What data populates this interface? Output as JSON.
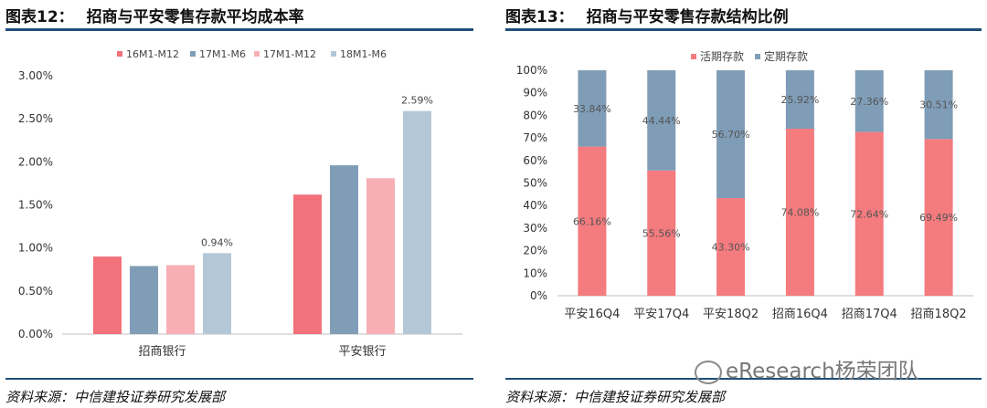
{
  "left": {
    "heading_num": "图表12：",
    "heading_title": "招商与平安零售存款平均成本率",
    "source": "资料来源：中信建投证券研究发展部"
  },
  "right": {
    "heading_num": "图表13：",
    "heading_title": "招商与平安零售存款结构比例",
    "source": "资料来源：中信建投证券研究发展部"
  },
  "watermark": "eResearch杨荣团队",
  "chart_data": [
    {
      "type": "bar",
      "title": "",
      "categories": [
        "招商银行",
        "平安银行"
      ],
      "series": [
        {
          "name": "16M1-M12",
          "color": "#f2717a",
          "values": [
            0.9,
            1.62
          ]
        },
        {
          "name": "17M1-M6",
          "color": "#7f9db7",
          "values": [
            0.79,
            1.96
          ]
        },
        {
          "name": "17M1-M12",
          "color": "#f7afb5",
          "values": [
            0.8,
            1.81
          ]
        },
        {
          "name": "18M1-M6",
          "color": "#b4c7d6",
          "values": [
            0.94,
            2.59
          ]
        }
      ],
      "data_labels": [
        {
          "series": 3,
          "category": 0,
          "text": "0.94%"
        },
        {
          "series": 3,
          "category": 1,
          "text": "2.59%"
        }
      ],
      "yticks": [
        "0.00%",
        "0.50%",
        "1.00%",
        "1.50%",
        "2.00%",
        "2.50%",
        "3.00%"
      ],
      "ylim": [
        0,
        3.0
      ],
      "legend": "top"
    },
    {
      "type": "bar",
      "stacked": true,
      "title": "",
      "categories": [
        "平安16Q4",
        "平安17Q4",
        "平安18Q2",
        "招商16Q4",
        "招商17Q4",
        "招商18Q2"
      ],
      "series": [
        {
          "name": "活期存款",
          "color": "#f47b7e",
          "values": [
            66.16,
            55.56,
            43.3,
            74.08,
            72.64,
            69.49
          ],
          "labels": [
            "66.16%",
            "55.56%",
            "43.30%",
            "74.08%",
            "72.64%",
            "69.49%"
          ]
        },
        {
          "name": "定期存款",
          "color": "#7f9db7",
          "values": [
            33.84,
            44.44,
            56.7,
            25.92,
            27.36,
            30.51
          ],
          "labels": [
            "33.84%",
            "44.44%",
            "56.70%",
            "25.92%",
            "27.36%",
            "30.51%"
          ]
        }
      ],
      "yticks": [
        "0%",
        "10%",
        "20%",
        "30%",
        "40%",
        "50%",
        "60%",
        "70%",
        "80%",
        "90%",
        "100%"
      ],
      "ylim": [
        0,
        100
      ],
      "legend": "top"
    }
  ]
}
